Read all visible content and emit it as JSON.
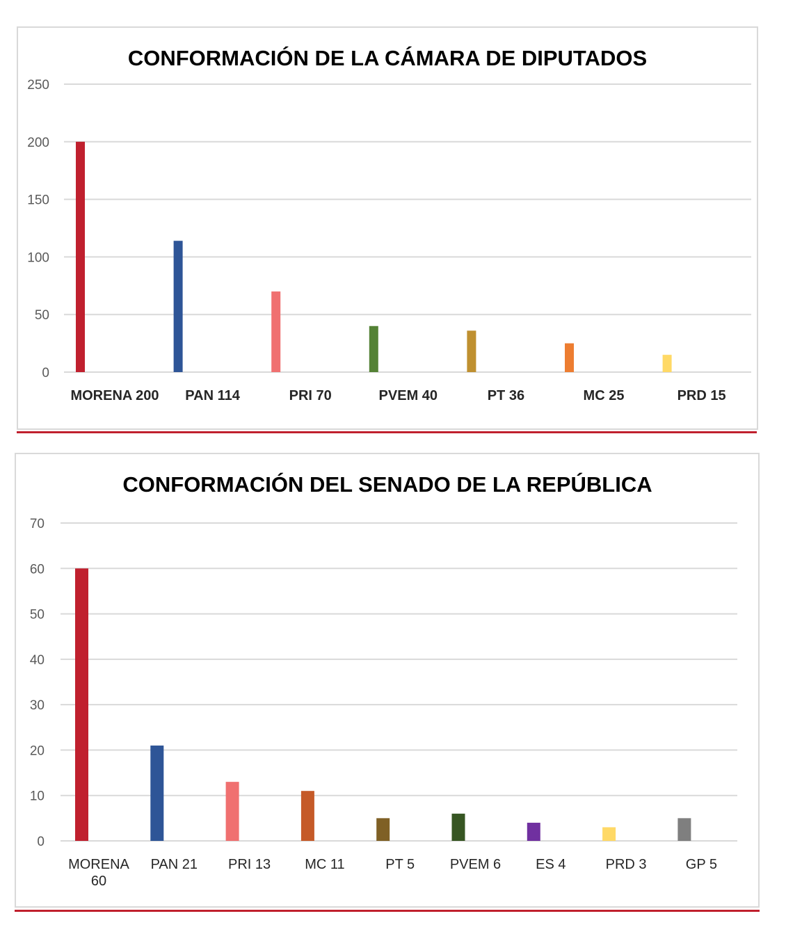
{
  "chart_data": [
    {
      "type": "bar",
      "title": "CONFORMACIÓN DE LA CÁMARA DE DIPUTADOS",
      "categories": [
        "MORENA 200",
        "PAN 114",
        "PRI 70",
        "PVEM 40",
        "PT 36",
        "MC 25",
        "PRD 15"
      ],
      "values": [
        200,
        114,
        70,
        40,
        36,
        25,
        15
      ],
      "colors": [
        "#c0202e",
        "#2e5597",
        "#f07070",
        "#548235",
        "#bf9030",
        "#ed7d31",
        "#ffd966"
      ],
      "yticks": [
        "0",
        "50",
        "100",
        "150",
        "200",
        "250"
      ],
      "ylim": [
        0,
        250
      ],
      "grid": true,
      "legend": "none"
    },
    {
      "type": "bar",
      "title": "CONFORMACIÓN DEL SENADO DE LA REPÚBLICA",
      "categories": [
        [
          "MORENA",
          "60"
        ],
        [
          "PAN 21"
        ],
        [
          "PRI 13"
        ],
        [
          "MC 11"
        ],
        [
          "PT 5"
        ],
        [
          "PVEM 6"
        ],
        [
          "ES 4"
        ],
        [
          "PRD 3"
        ],
        [
          "GP 5"
        ]
      ],
      "values": [
        60,
        21,
        13,
        11,
        5,
        6,
        4,
        3,
        5
      ],
      "colors": [
        "#c0202e",
        "#2e5597",
        "#f07070",
        "#c55a28",
        "#7f6025",
        "#375623",
        "#7030a0",
        "#ffd966",
        "#7f7f7f"
      ],
      "yticks": [
        "0",
        "10",
        "20",
        "30",
        "40",
        "50",
        "60",
        "70"
      ],
      "ylim": [
        0,
        70
      ],
      "grid": true,
      "legend": "none"
    }
  ]
}
